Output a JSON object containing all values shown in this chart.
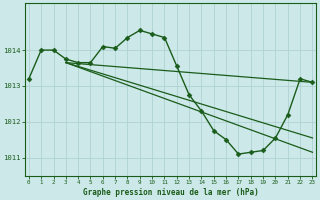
{
  "title": "Graphe pression niveau de la mer (hPa)",
  "bg_color": "#cce8e8",
  "grid_color": "#aacece",
  "line_color": "#1a5c1a",
  "ylim": [
    1010.5,
    1015.3
  ],
  "xlim": [
    -0.3,
    23.3
  ],
  "yticks": [
    1011,
    1012,
    1013,
    1014
  ],
  "xticks": [
    0,
    1,
    2,
    3,
    4,
    5,
    6,
    7,
    8,
    9,
    10,
    11,
    12,
    13,
    14,
    15,
    16,
    17,
    18,
    19,
    20,
    21,
    22,
    23
  ],
  "series": [
    {
      "x": [
        0,
        1,
        2,
        3,
        4,
        5,
        6,
        7,
        8,
        9,
        10,
        11,
        12,
        13,
        14,
        15,
        16,
        17,
        18,
        19,
        20,
        21,
        22,
        23
      ],
      "y": [
        1013.2,
        1014.0,
        1014.0,
        1013.75,
        1013.65,
        1013.65,
        1014.1,
        1014.05,
        1014.35,
        1014.55,
        1014.45,
        1014.35,
        1013.55,
        1012.75,
        1012.3,
        1011.75,
        1011.5,
        1011.1,
        1011.15,
        1011.2,
        1011.55,
        1012.2,
        1013.2,
        1013.1
      ],
      "marker": "D",
      "markersize": 2.5,
      "linewidth": 1.0
    },
    {
      "x": [
        3,
        23
      ],
      "y": [
        1013.65,
        1013.1
      ],
      "marker": null,
      "linewidth": 0.9
    },
    {
      "x": [
        3,
        23
      ],
      "y": [
        1013.65,
        1011.55
      ],
      "marker": null,
      "linewidth": 0.9
    },
    {
      "x": [
        3,
        23
      ],
      "y": [
        1013.65,
        1011.15
      ],
      "marker": null,
      "linewidth": 0.9
    }
  ]
}
